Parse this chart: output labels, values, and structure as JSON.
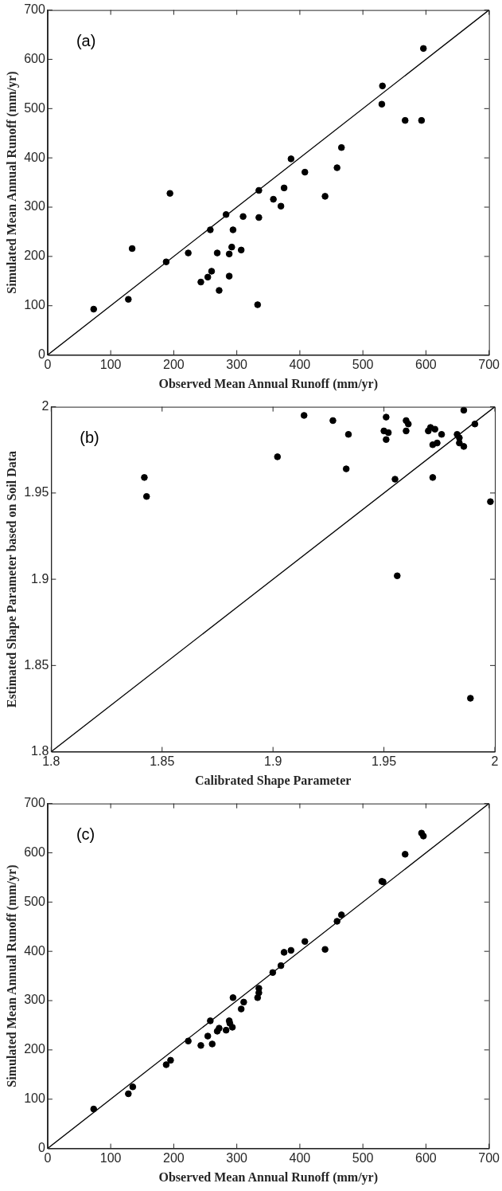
{
  "chart_data": [
    {
      "type": "scatter",
      "xlabel": "Observed Mean Annual Runoff (mm/yr)",
      "ylabel": "Simulated Mean Annual Runoff (mm/yr)",
      "annotations": [
        "(a)"
      ],
      "xlim": [
        0,
        700
      ],
      "ylim": [
        0,
        700
      ],
      "xticks": [
        0,
        100,
        200,
        300,
        400,
        500,
        600,
        700
      ],
      "yticks": [
        0,
        100,
        200,
        300,
        400,
        500,
        600,
        700
      ],
      "grid": false,
      "legend": false,
      "series": [
        {
          "marker": "circle",
          "color": "#000000",
          "x": [
            73,
            128,
            134,
            188,
            194,
            223,
            243,
            254,
            258,
            260,
            269,
            272,
            283,
            288,
            288,
            292,
            294,
            307,
            310,
            333,
            335,
            335,
            358,
            370,
            375,
            386,
            408,
            440,
            459,
            466,
            530,
            531,
            567,
            593,
            596
          ],
          "values": [
            93,
            113,
            216,
            189,
            328,
            207,
            148,
            158,
            254,
            170,
            207,
            131,
            285,
            205,
            160,
            219,
            254,
            213,
            281,
            102,
            334,
            279,
            316,
            302,
            339,
            398,
            371,
            322,
            380,
            421,
            509,
            546,
            476,
            476,
            622
          ]
        },
        {
          "type": "line",
          "marker": "none",
          "color": "#000000",
          "x": [
            0,
            700
          ],
          "values": [
            0,
            700
          ]
        }
      ]
    },
    {
      "type": "scatter",
      "xlabel": "Calibrated Shape Parameter",
      "ylabel": "Estimated Shape Parameter based on Soil Data",
      "annotations": [
        "(b)"
      ],
      "xlim": [
        1.8,
        2
      ],
      "ylim": [
        1.8,
        2
      ],
      "xticks": [
        1.8,
        1.85,
        1.9,
        1.95,
        2
      ],
      "yticks": [
        1.8,
        1.85,
        1.9,
        1.95,
        2
      ],
      "grid": false,
      "legend": false,
      "series": [
        {
          "marker": "circle",
          "color": "#000000",
          "x": [
            1.842,
            1.843,
            1.902,
            1.914,
            1.927,
            1.933,
            1.934,
            1.95,
            1.951,
            1.951,
            1.952,
            1.955,
            1.956,
            1.96,
            1.96,
            1.961,
            1.97,
            1.971,
            1.973,
            1.972,
            1.972,
            1.974,
            1.976,
            1.983,
            1.984,
            1.984,
            1.986,
            1.986,
            1.989,
            1.991,
            1.998
          ],
          "values": [
            1.959,
            1.948,
            1.971,
            1.995,
            1.992,
            1.964,
            1.984,
            1.986,
            1.994,
            1.981,
            1.985,
            1.958,
            1.902,
            1.992,
            1.986,
            1.99,
            1.986,
            1.988,
            1.987,
            1.978,
            1.959,
            1.979,
            1.984,
            1.984,
            1.982,
            1.979,
            1.998,
            1.977,
            1.831,
            1.99,
            1.945
          ]
        },
        {
          "type": "line",
          "marker": "none",
          "color": "#000000",
          "x": [
            1.8,
            2
          ],
          "values": [
            1.8,
            2
          ]
        }
      ]
    },
    {
      "type": "scatter",
      "xlabel": "Observed Mean Annual Runoff (mm/yr)",
      "ylabel": "Simulated Mean Annual Runoff (mm/yr)",
      "annotations": [
        "(c)"
      ],
      "xlim": [
        0,
        700
      ],
      "ylim": [
        0,
        700
      ],
      "xticks": [
        0,
        100,
        200,
        300,
        400,
        500,
        600,
        700
      ],
      "yticks": [
        0,
        100,
        200,
        300,
        400,
        500,
        600,
        700
      ],
      "grid": false,
      "legend": false,
      "series": [
        {
          "marker": "circle",
          "color": "#000000",
          "x": [
            73,
            128,
            135,
            188,
            195,
            223,
            243,
            254,
            258,
            261,
            269,
            272,
            283,
            288,
            289,
            293,
            294,
            307,
            311,
            333,
            335,
            335,
            357,
            370,
            375,
            386,
            408,
            440,
            459,
            466,
            530,
            532,
            567,
            593,
            596
          ],
          "values": [
            80,
            111,
            125,
            170,
            179,
            218,
            209,
            228,
            259,
            212,
            238,
            244,
            240,
            259,
            254,
            246,
            306,
            283,
            297,
            306,
            316,
            325,
            357,
            371,
            398,
            402,
            420,
            404,
            461,
            474,
            542,
            541,
            597,
            640,
            634
          ]
        },
        {
          "type": "line",
          "marker": "none",
          "color": "#000000",
          "x": [
            0,
            700
          ],
          "values": [
            0,
            700
          ]
        }
      ]
    }
  ]
}
